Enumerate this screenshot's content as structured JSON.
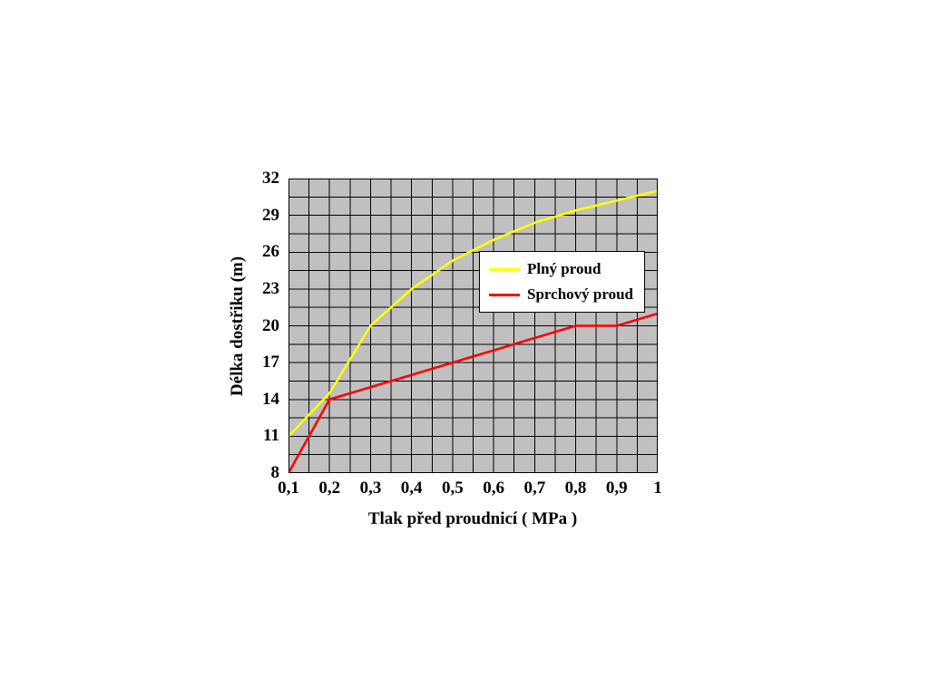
{
  "page": {
    "background": "#ffffff"
  },
  "chart_data": {
    "type": "line",
    "title": "",
    "xlabel": "Tlak před proudnicí ( MPa )",
    "ylabel": "Délka dostřiku (m)",
    "x": [
      0.1,
      0.2,
      0.3,
      0.4,
      0.5,
      0.6,
      0.7,
      0.8,
      0.9,
      1.0
    ],
    "x_tick_labels": [
      "0,1",
      "0,2",
      "0,3",
      "0,4",
      "0,5",
      "0,6",
      "0,7",
      "0,8",
      "0,9",
      "1"
    ],
    "y_ticks": [
      8,
      11,
      14,
      17,
      20,
      23,
      26,
      29,
      32
    ],
    "xlim": [
      0.1,
      1.0
    ],
    "ylim": [
      8,
      32
    ],
    "grid": {
      "major": true,
      "minor": true,
      "color": "#000000"
    },
    "plot_background": "#c0c0c0",
    "series": [
      {
        "name": "Plný proud",
        "color": "#ffff00",
        "values": [
          11,
          14.5,
          20,
          23,
          25.3,
          27,
          28.4,
          29.4,
          30.2,
          31
        ]
      },
      {
        "name": "Sprchový proud",
        "color": "#ff0000",
        "values": [
          8,
          14,
          15,
          16,
          17,
          18,
          19,
          20,
          20,
          21
        ]
      }
    ],
    "legend": {
      "position": "inside-top-right",
      "background": "#ffffff",
      "border": "#000000"
    }
  }
}
